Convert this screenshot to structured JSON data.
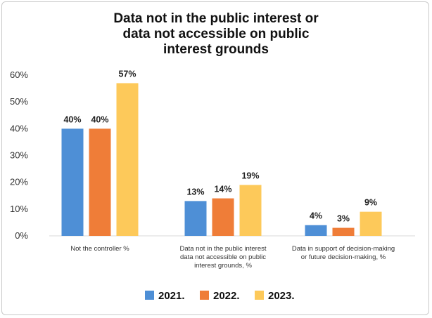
{
  "chart_data": {
    "type": "bar",
    "title_lines": [
      "Data not in the public interest or",
      "data not accessible on public",
      "interest grounds"
    ],
    "categories": [
      [
        "Not the controller %"
      ],
      [
        "Data not in the public interest",
        "data not accessible on public",
        "interest grounds, %"
      ],
      [
        "Data in support of decision-making",
        "or future decision-making, %"
      ]
    ],
    "series": [
      {
        "name": "2021.",
        "color": "#4e8fd6",
        "values": [
          40,
          13,
          4
        ],
        "labels": [
          "40%",
          "13%",
          "4%"
        ]
      },
      {
        "name": "2022.",
        "color": "#ef7d38",
        "values": [
          40,
          14,
          3
        ],
        "labels": [
          "40%",
          "14%",
          "3%"
        ]
      },
      {
        "name": "2023.",
        "color": "#fdc95a",
        "values": [
          57,
          19,
          9
        ],
        "labels": [
          "57%",
          "19%",
          "9%"
        ]
      }
    ],
    "y_ticks": [
      "0%",
      "10%",
      "20%",
      "30%",
      "40%",
      "50%",
      "60%"
    ],
    "ylim": [
      0,
      60
    ],
    "grid": false,
    "legend_position": "bottom"
  }
}
